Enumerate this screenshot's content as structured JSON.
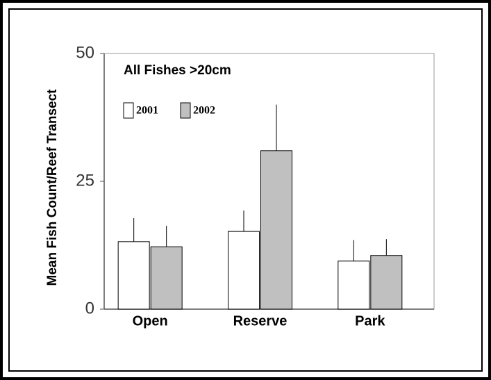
{
  "chart_data": {
    "type": "bar",
    "title": "All Fishes >20cm",
    "ylabel": "Mean Fish Count/Reef Transect",
    "categories": [
      "Open",
      "Reserve",
      "Park"
    ],
    "series": [
      {
        "name": "2001",
        "color": "#ffffff",
        "values": [
          13.2,
          15.2,
          9.4
        ],
        "errors": [
          4.6,
          4.1,
          4.1
        ]
      },
      {
        "name": "2002",
        "color": "#c0c0c0",
        "values": [
          12.2,
          31.0,
          10.5
        ],
        "errors": [
          4.1,
          9.0,
          3.2
        ]
      }
    ],
    "ylim": [
      0,
      50
    ],
    "yticks": [
      0,
      25,
      50
    ]
  }
}
